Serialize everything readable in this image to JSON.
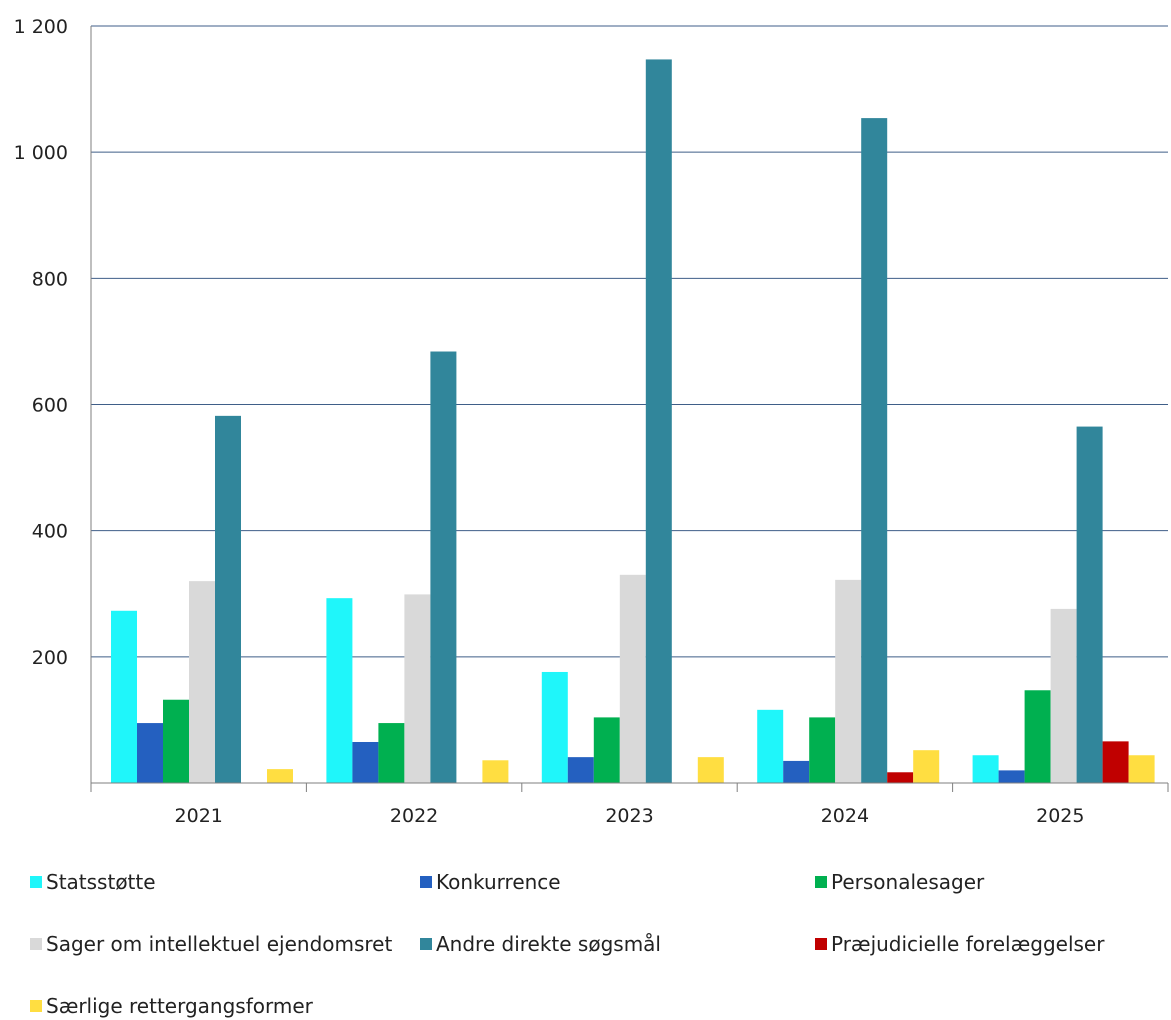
{
  "chart_data": {
    "type": "bar",
    "categories": [
      "2021",
      "2022",
      "2023",
      "2024",
      "2025"
    ],
    "ylim": [
      0,
      1200
    ],
    "yticks": [
      200,
      400,
      600,
      800,
      1000,
      1200
    ],
    "ytick_labels": [
      "200",
      "400",
      "600",
      "800",
      "1 000",
      "1 200"
    ],
    "grid": true,
    "legend_position": "bottom",
    "series": [
      {
        "name": "Statsstøtte",
        "color": "#1ff6fa",
        "values": [
          273,
          293,
          176,
          116,
          44
        ]
      },
      {
        "name": "Konkurrence",
        "color": "#2460c0",
        "values": [
          95,
          65,
          41,
          35,
          20
        ]
      },
      {
        "name": "Personalesager",
        "color": "#00b050",
        "values": [
          132,
          95,
          104,
          104,
          147
        ]
      },
      {
        "name": "Sager om intellektuel ejendomsret",
        "color": "#d9d9d9",
        "values": [
          320,
          299,
          330,
          322,
          276
        ]
      },
      {
        "name": "Andre direkte søgsmål",
        "color": "#31869b",
        "values": [
          582,
          684,
          1147,
          1054,
          565
        ]
      },
      {
        "name": "Præjudicielle forelæggelser",
        "color": "#c00000",
        "values": [
          0,
          0,
          0,
          17,
          66
        ]
      },
      {
        "name": "Særlige rettergangsformer",
        "color": "#ffde41",
        "values": [
          22,
          36,
          41,
          52,
          44
        ]
      }
    ]
  }
}
